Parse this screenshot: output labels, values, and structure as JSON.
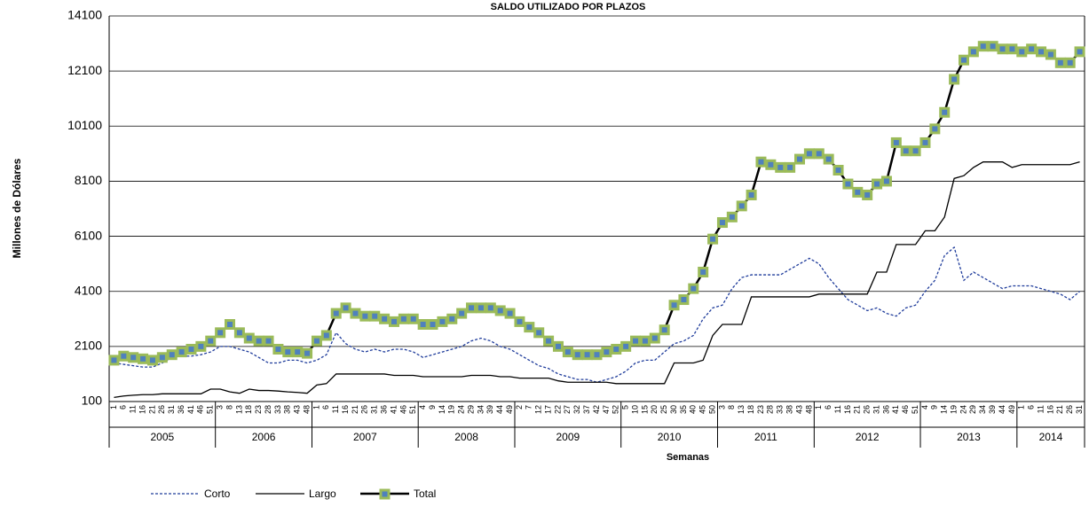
{
  "chart_data": {
    "type": "line",
    "title": "SALDO UTILIZADO POR PLAZOS",
    "x_label": "Semanas",
    "y_label": "Millones de Dólares",
    "years": [
      {
        "year": "2005",
        "weeks": [
          "1",
          "6",
          "11",
          "16",
          "21",
          "26",
          "31",
          "36",
          "41",
          "46",
          "51"
        ]
      },
      {
        "year": "2006",
        "weeks": [
          "3",
          "8",
          "13",
          "18",
          "23",
          "28",
          "33",
          "38",
          "43",
          "48"
        ]
      },
      {
        "year": "2007",
        "weeks": [
          "1",
          "6",
          "11",
          "16",
          "21",
          "26",
          "31",
          "36",
          "41",
          "46",
          "51"
        ]
      },
      {
        "year": "2008",
        "weeks": [
          "4",
          "9",
          "14",
          "19",
          "24",
          "29",
          "34",
          "39",
          "44",
          "49"
        ]
      },
      {
        "year": "2009",
        "weeks": [
          "2",
          "7",
          "12",
          "17",
          "22",
          "27",
          "32",
          "37",
          "42",
          "47",
          "52"
        ]
      },
      {
        "year": "2010",
        "weeks": [
          "5",
          "10",
          "15",
          "20",
          "25",
          "30",
          "35",
          "40",
          "45",
          "50"
        ]
      },
      {
        "year": "2011",
        "weeks": [
          "3",
          "8",
          "13",
          "18",
          "23",
          "28",
          "33",
          "38",
          "43",
          "48"
        ]
      },
      {
        "year": "2012",
        "weeks": [
          "1",
          "6",
          "11",
          "16",
          "21",
          "26",
          "31",
          "36",
          "41",
          "46",
          "51"
        ]
      },
      {
        "year": "2013",
        "weeks": [
          "4",
          "9",
          "14",
          "19",
          "24",
          "29",
          "34",
          "39",
          "44",
          "49"
        ]
      },
      {
        "year": "2014",
        "weeks": [
          "1",
          "6",
          "11",
          "16",
          "21",
          "26",
          "31"
        ]
      }
    ],
    "ylim": [
      100,
      14100
    ],
    "yticks": [
      100,
      2100,
      4100,
      6100,
      8100,
      10100,
      12100,
      14100
    ],
    "grid": true,
    "series": [
      {
        "name": "Corto",
        "color": "#1f3c9b",
        "style": "dashed",
        "values": [
          1500,
          1450,
          1400,
          1350,
          1350,
          1500,
          1700,
          1750,
          1750,
          1800,
          1900,
          2100,
          2100,
          2000,
          1900,
          1700,
          1500,
          1500,
          1600,
          1600,
          1500,
          1600,
          1800,
          2600,
          2200,
          2000,
          1900,
          2000,
          1900,
          2000,
          2000,
          1900,
          1700,
          1800,
          1900,
          2000,
          2100,
          2300,
          2400,
          2300,
          2100,
          2000,
          1800,
          1600,
          1400,
          1300,
          1100,
          1000,
          900,
          900,
          800,
          900,
          1000,
          1200,
          1500,
          1600,
          1600,
          1900,
          2200,
          2300,
          2500,
          3100,
          3500,
          3600,
          4200,
          4600,
          4700,
          4700,
          4700,
          4700,
          4900,
          5100,
          5300,
          5100,
          4600,
          4200,
          3800,
          3600,
          3400,
          3500,
          3300,
          3200,
          3500,
          3600,
          4100,
          4500,
          5400,
          5700,
          4500,
          4800,
          4600,
          4400,
          4200,
          4300,
          4300,
          4300,
          4200,
          4100,
          4000,
          3800,
          4100
        ]
      },
      {
        "name": "Largo",
        "color": "#000000",
        "style": "solid",
        "values": [
          250,
          300,
          330,
          350,
          350,
          380,
          380,
          380,
          380,
          380,
          550,
          550,
          450,
          400,
          550,
          500,
          500,
          480,
          450,
          430,
          400,
          700,
          750,
          1100,
          1100,
          1100,
          1100,
          1100,
          1100,
          1050,
          1050,
          1050,
          1000,
          1000,
          1000,
          1000,
          1000,
          1050,
          1050,
          1050,
          1000,
          1000,
          950,
          950,
          950,
          950,
          850,
          800,
          800,
          800,
          800,
          800,
          750,
          750,
          750,
          750,
          750,
          750,
          1500,
          1500,
          1500,
          1600,
          2500,
          2900,
          2900,
          2900,
          3900,
          3900,
          3900,
          3900,
          3900,
          3900,
          3900,
          4000,
          4000,
          4000,
          4000,
          4000,
          4000,
          4800,
          4800,
          5800,
          5800,
          5800,
          6300,
          6300,
          6800,
          8200,
          8300,
          8600,
          8800,
          8800,
          8800,
          8600,
          8700,
          8700,
          8700,
          8700,
          8700,
          8700,
          8800
        ]
      },
      {
        "name": "Total",
        "color": "#000000",
        "marker_color": "#9bbb59",
        "marker_edge": "#4f81bd",
        "style": "marker",
        "values": [
          1600,
          1750,
          1700,
          1650,
          1600,
          1700,
          1800,
          1900,
          2000,
          2100,
          2300,
          2600,
          2900,
          2600,
          2400,
          2300,
          2300,
          2000,
          1900,
          1900,
          1850,
          2300,
          2500,
          3300,
          3500,
          3300,
          3200,
          3200,
          3100,
          3000,
          3100,
          3100,
          2900,
          2900,
          3000,
          3100,
          3300,
          3500,
          3500,
          3500,
          3400,
          3300,
          3000,
          2800,
          2600,
          2300,
          2100,
          1900,
          1800,
          1800,
          1800,
          1900,
          2000,
          2100,
          2300,
          2300,
          2400,
          2700,
          3600,
          3800,
          4200,
          4800,
          6000,
          6600,
          6800,
          7200,
          7600,
          8800,
          8700,
          8600,
          8600,
          8900,
          9100,
          9100,
          8900,
          8500,
          8000,
          7700,
          7600,
          8000,
          8100,
          9500,
          9200,
          9200,
          9500,
          10000,
          10600,
          11800,
          12500,
          12800,
          13000,
          13000,
          12900,
          12900,
          12800,
          12900,
          12800,
          12700,
          12400,
          12400,
          12800
        ]
      }
    ]
  }
}
